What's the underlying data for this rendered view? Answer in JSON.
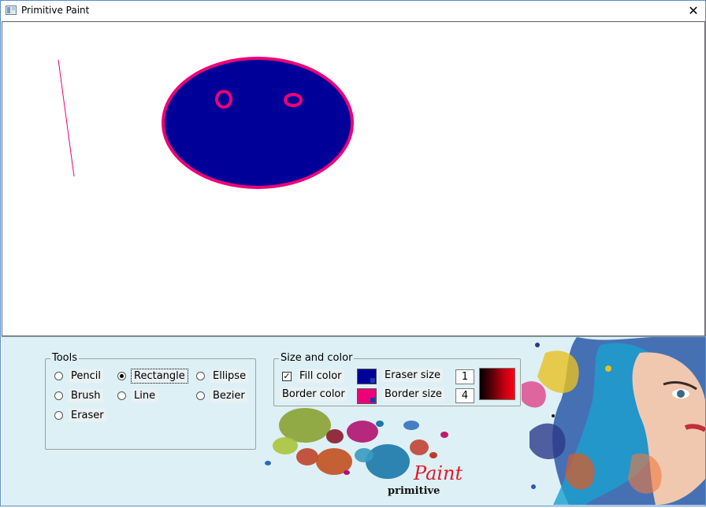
{
  "window": {
    "title": "Primitive Paint",
    "close_glyph": "✕"
  },
  "tools": {
    "title": "Tools",
    "options": [
      {
        "label": "Pencil",
        "selected": false
      },
      {
        "label": "Rectangle",
        "selected": true
      },
      {
        "label": "Ellipse",
        "selected": false
      },
      {
        "label": "Brush",
        "selected": false
      },
      {
        "label": "Line",
        "selected": false
      },
      {
        "label": "Bezier",
        "selected": false
      },
      {
        "label": "Eraser",
        "selected": false
      }
    ]
  },
  "size_color": {
    "title": "Size and color",
    "fill_color_label": "Fill color",
    "fill_enabled": true,
    "check_glyph": "✓",
    "border_color_label": "Border color",
    "eraser_size_label": "Eraser size",
    "eraser_size": "1",
    "border_size_label": "Border size",
    "border_size": "4",
    "fill_color": "#000099",
    "border_color": "#ee0077"
  },
  "logo": {
    "word_paint": "Paint",
    "word_primitive": "primitive"
  },
  "colors": {
    "canvas_bg": "#ffffff",
    "panel_bg": "#ddf0f5",
    "shape_fill": "#000099",
    "shape_border": "#ee0077"
  }
}
